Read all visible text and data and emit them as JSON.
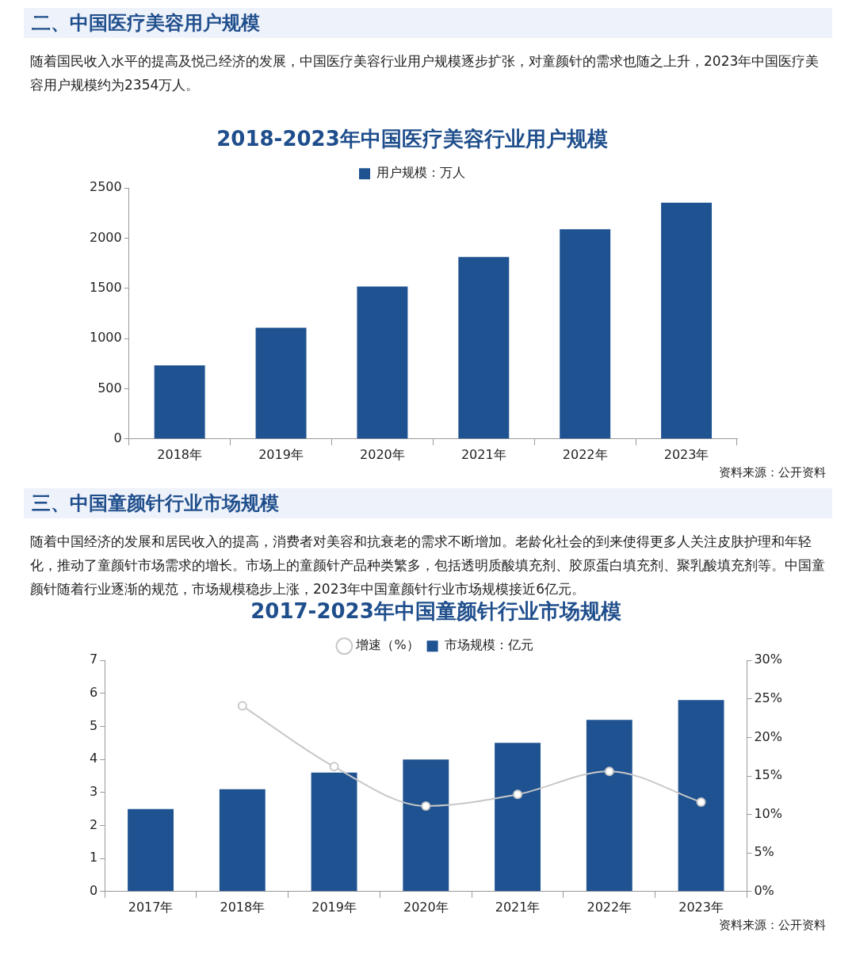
{
  "chart_data": [
    {
      "type": "bar",
      "title": "2018-2023年中国医疗美容行业用户规模",
      "annotations": [
        "二、中国医疗美容用户规模",
        "随着国民收入水平的提高及悦己经济的发展，中国医疗美容行业用户规模逐步扩张，对童颜针的需求也随之上升，2023年中国医疗美容用户规模约为2354万人。",
        "资料来源：公开资料"
      ],
      "categories": [
        "2018年",
        "2019年",
        "2020年",
        "2021年",
        "2022年",
        "2023年"
      ],
      "series": [
        {
          "name": "用户规模：万人",
          "color": "#1f5291",
          "values": [
            732,
            1107,
            1518,
            1813,
            2089,
            2354
          ]
        }
      ],
      "ylim": [
        0,
        2500
      ],
      "yticks": [
        0,
        500,
        1000,
        1500,
        2000,
        2500
      ],
      "legend": "top"
    },
    {
      "type": "bar",
      "title": "2017-2023年中国童颜针行业市场规模",
      "annotations": [
        "三、中国童颜针行业市场规模",
        "随着中国经济的发展和居民收入的提高，消费者对美容和抗衰老的需求不断增加。老龄化社会的到来使得更多人关注皮肤护理和年轻化，推动了童颜针市场需求的增长。市场上的童颜针产品种类繁多，包括透明质酸填充剂、胶原蛋白填充剂、聚乳酸填充剂等。中国童颜针随着行业逐渐的规范，市场规模稳步上涨，2023年中国童颜针行业市场规模接近6亿元。",
        "资料来源：公开资料"
      ],
      "categories": [
        "2017年",
        "2018年",
        "2019年",
        "2020年",
        "2021年",
        "2022年",
        "2023年"
      ],
      "series": [
        {
          "name": "市场规模：亿元",
          "color": "#1f5291",
          "values": [
            2.5,
            3.1,
            3.6,
            4.0,
            4.5,
            5.2,
            5.8
          ]
        },
        {
          "name": "增速（%）",
          "type": "line",
          "axis": "y2",
          "color": "#c8c8c8",
          "values": [
            null,
            24.1,
            16.2,
            11.1,
            12.6,
            15.6,
            11.6
          ]
        }
      ],
      "ylim": [
        0,
        7
      ],
      "yticks": [
        0,
        1,
        2,
        3,
        4,
        5,
        6,
        7
      ],
      "y2lim": [
        0,
        30
      ],
      "y2ticks": [
        {
          "value": 0,
          "label": "0%"
        },
        {
          "value": 5,
          "label": "5%"
        },
        {
          "value": 10,
          "label": "10%"
        },
        {
          "value": 15,
          "label": "15%"
        },
        {
          "value": 20,
          "label": "20%"
        },
        {
          "value": 25,
          "label": "25%"
        },
        {
          "value": 30,
          "label": "30%"
        }
      ],
      "legend": "top",
      "marker": "circle"
    }
  ]
}
